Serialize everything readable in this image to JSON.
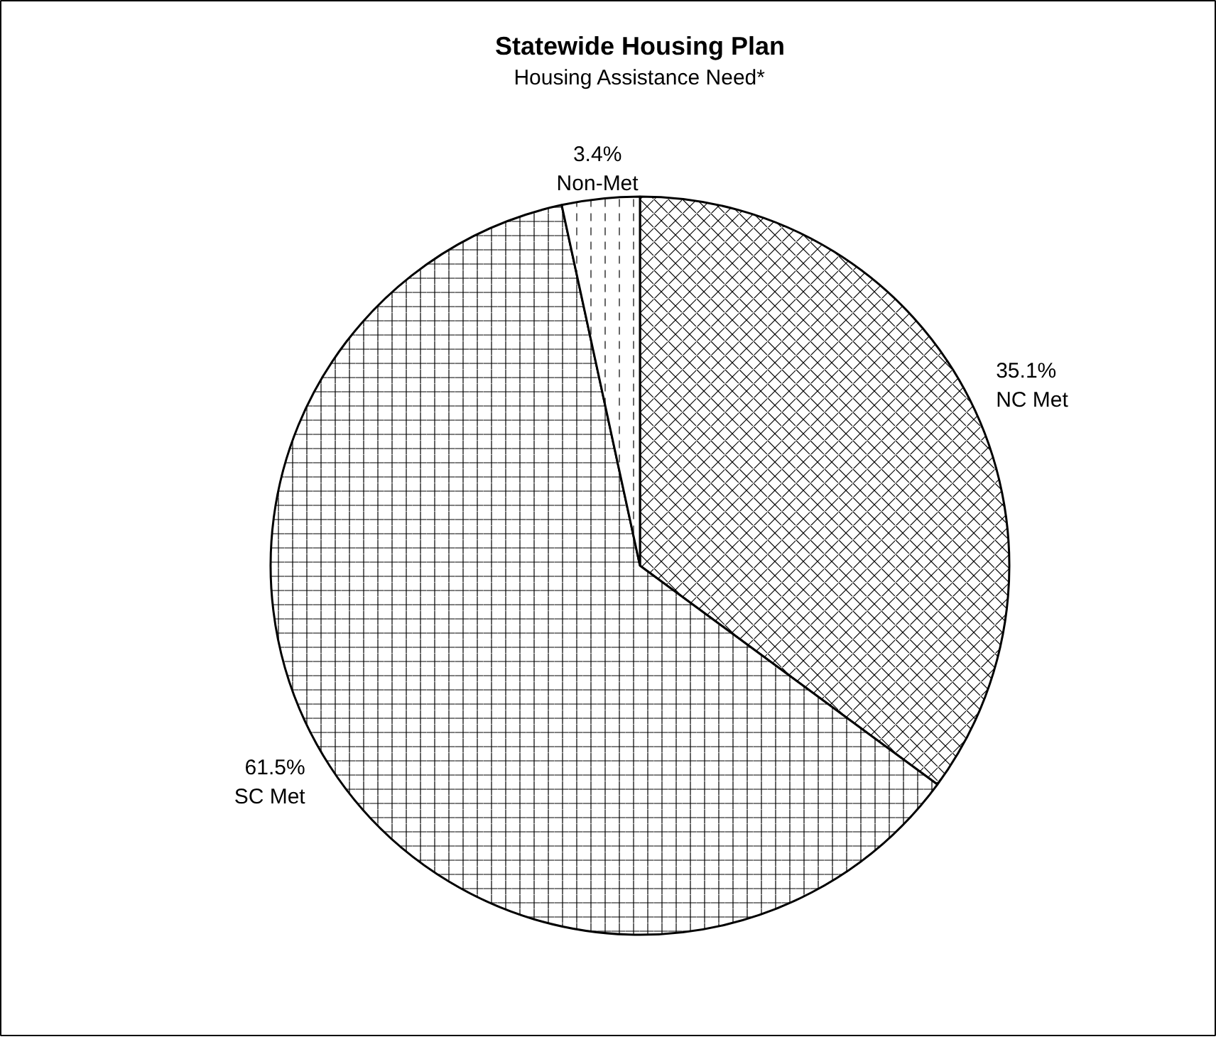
{
  "chart_data": {
    "type": "pie",
    "title": "Statewide Housing Plan",
    "subtitle": "Housing Assistance Need*",
    "categories": [
      "NC Met",
      "SC Met",
      "Non-Met"
    ],
    "values": [
      35.1,
      61.5,
      3.4
    ],
    "value_labels": [
      "35.1%",
      "61.5%",
      "3.4%"
    ],
    "colors": [
      "#ffffff",
      "#ffffff",
      "#ffffff"
    ]
  }
}
